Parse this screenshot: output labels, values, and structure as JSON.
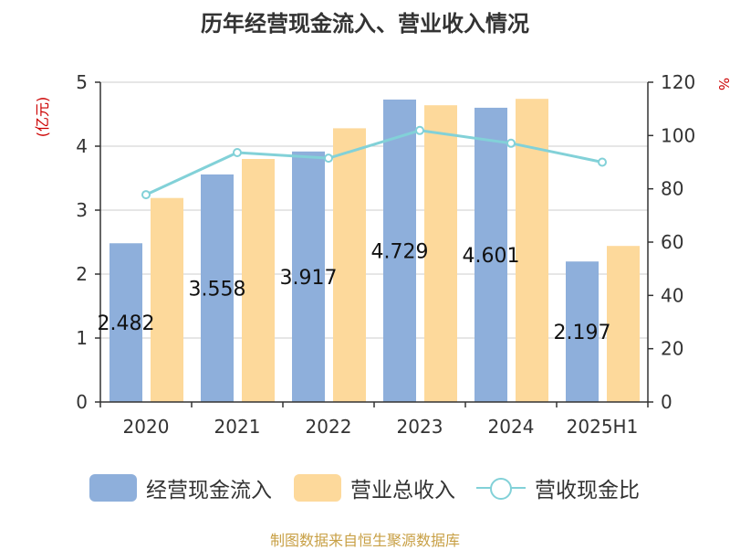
{
  "title": "历年经营现金流入、营业收入情况",
  "left_unit": "(亿元)",
  "right_unit": "%",
  "legend": {
    "inflow": "经营现金流入",
    "revenue": "营业总收入",
    "ratio": "营收现金比"
  },
  "source": "制图数据来自恒生聚源数据库",
  "colors": {
    "inflow": "#8eafdb",
    "revenue": "#fdd99b",
    "ratio": "#82d1d8",
    "unit_left": "#cc0000",
    "unit_right": "#cc0000",
    "source": "#c8a046"
  },
  "chart_data": {
    "type": "bar",
    "categories": [
      "2020",
      "2021",
      "2022",
      "2023",
      "2024",
      "2025H1"
    ],
    "series": [
      {
        "name": "经营现金流入",
        "axis": "left",
        "values": [
          2.482,
          3.558,
          3.917,
          4.729,
          4.601,
          2.197
        ],
        "labels": [
          "2.482",
          "3.558",
          "3.917",
          "4.729",
          "4.601",
          "2.197"
        ]
      },
      {
        "name": "营业总收入",
        "axis": "left",
        "values": [
          3.19,
          3.8,
          4.28,
          4.64,
          4.74,
          2.44
        ]
      },
      {
        "name": "营收现金比",
        "axis": "right",
        "type": "line",
        "values": [
          77.8,
          93.6,
          91.5,
          101.9,
          97.1,
          90.0
        ]
      }
    ],
    "y_left": {
      "min": 0,
      "max": 5,
      "ticks": [
        0,
        1,
        2,
        3,
        4,
        5
      ]
    },
    "y_right": {
      "min": 0,
      "max": 120,
      "ticks": [
        0,
        20,
        40,
        60,
        80,
        100,
        120
      ]
    },
    "grid": true
  }
}
